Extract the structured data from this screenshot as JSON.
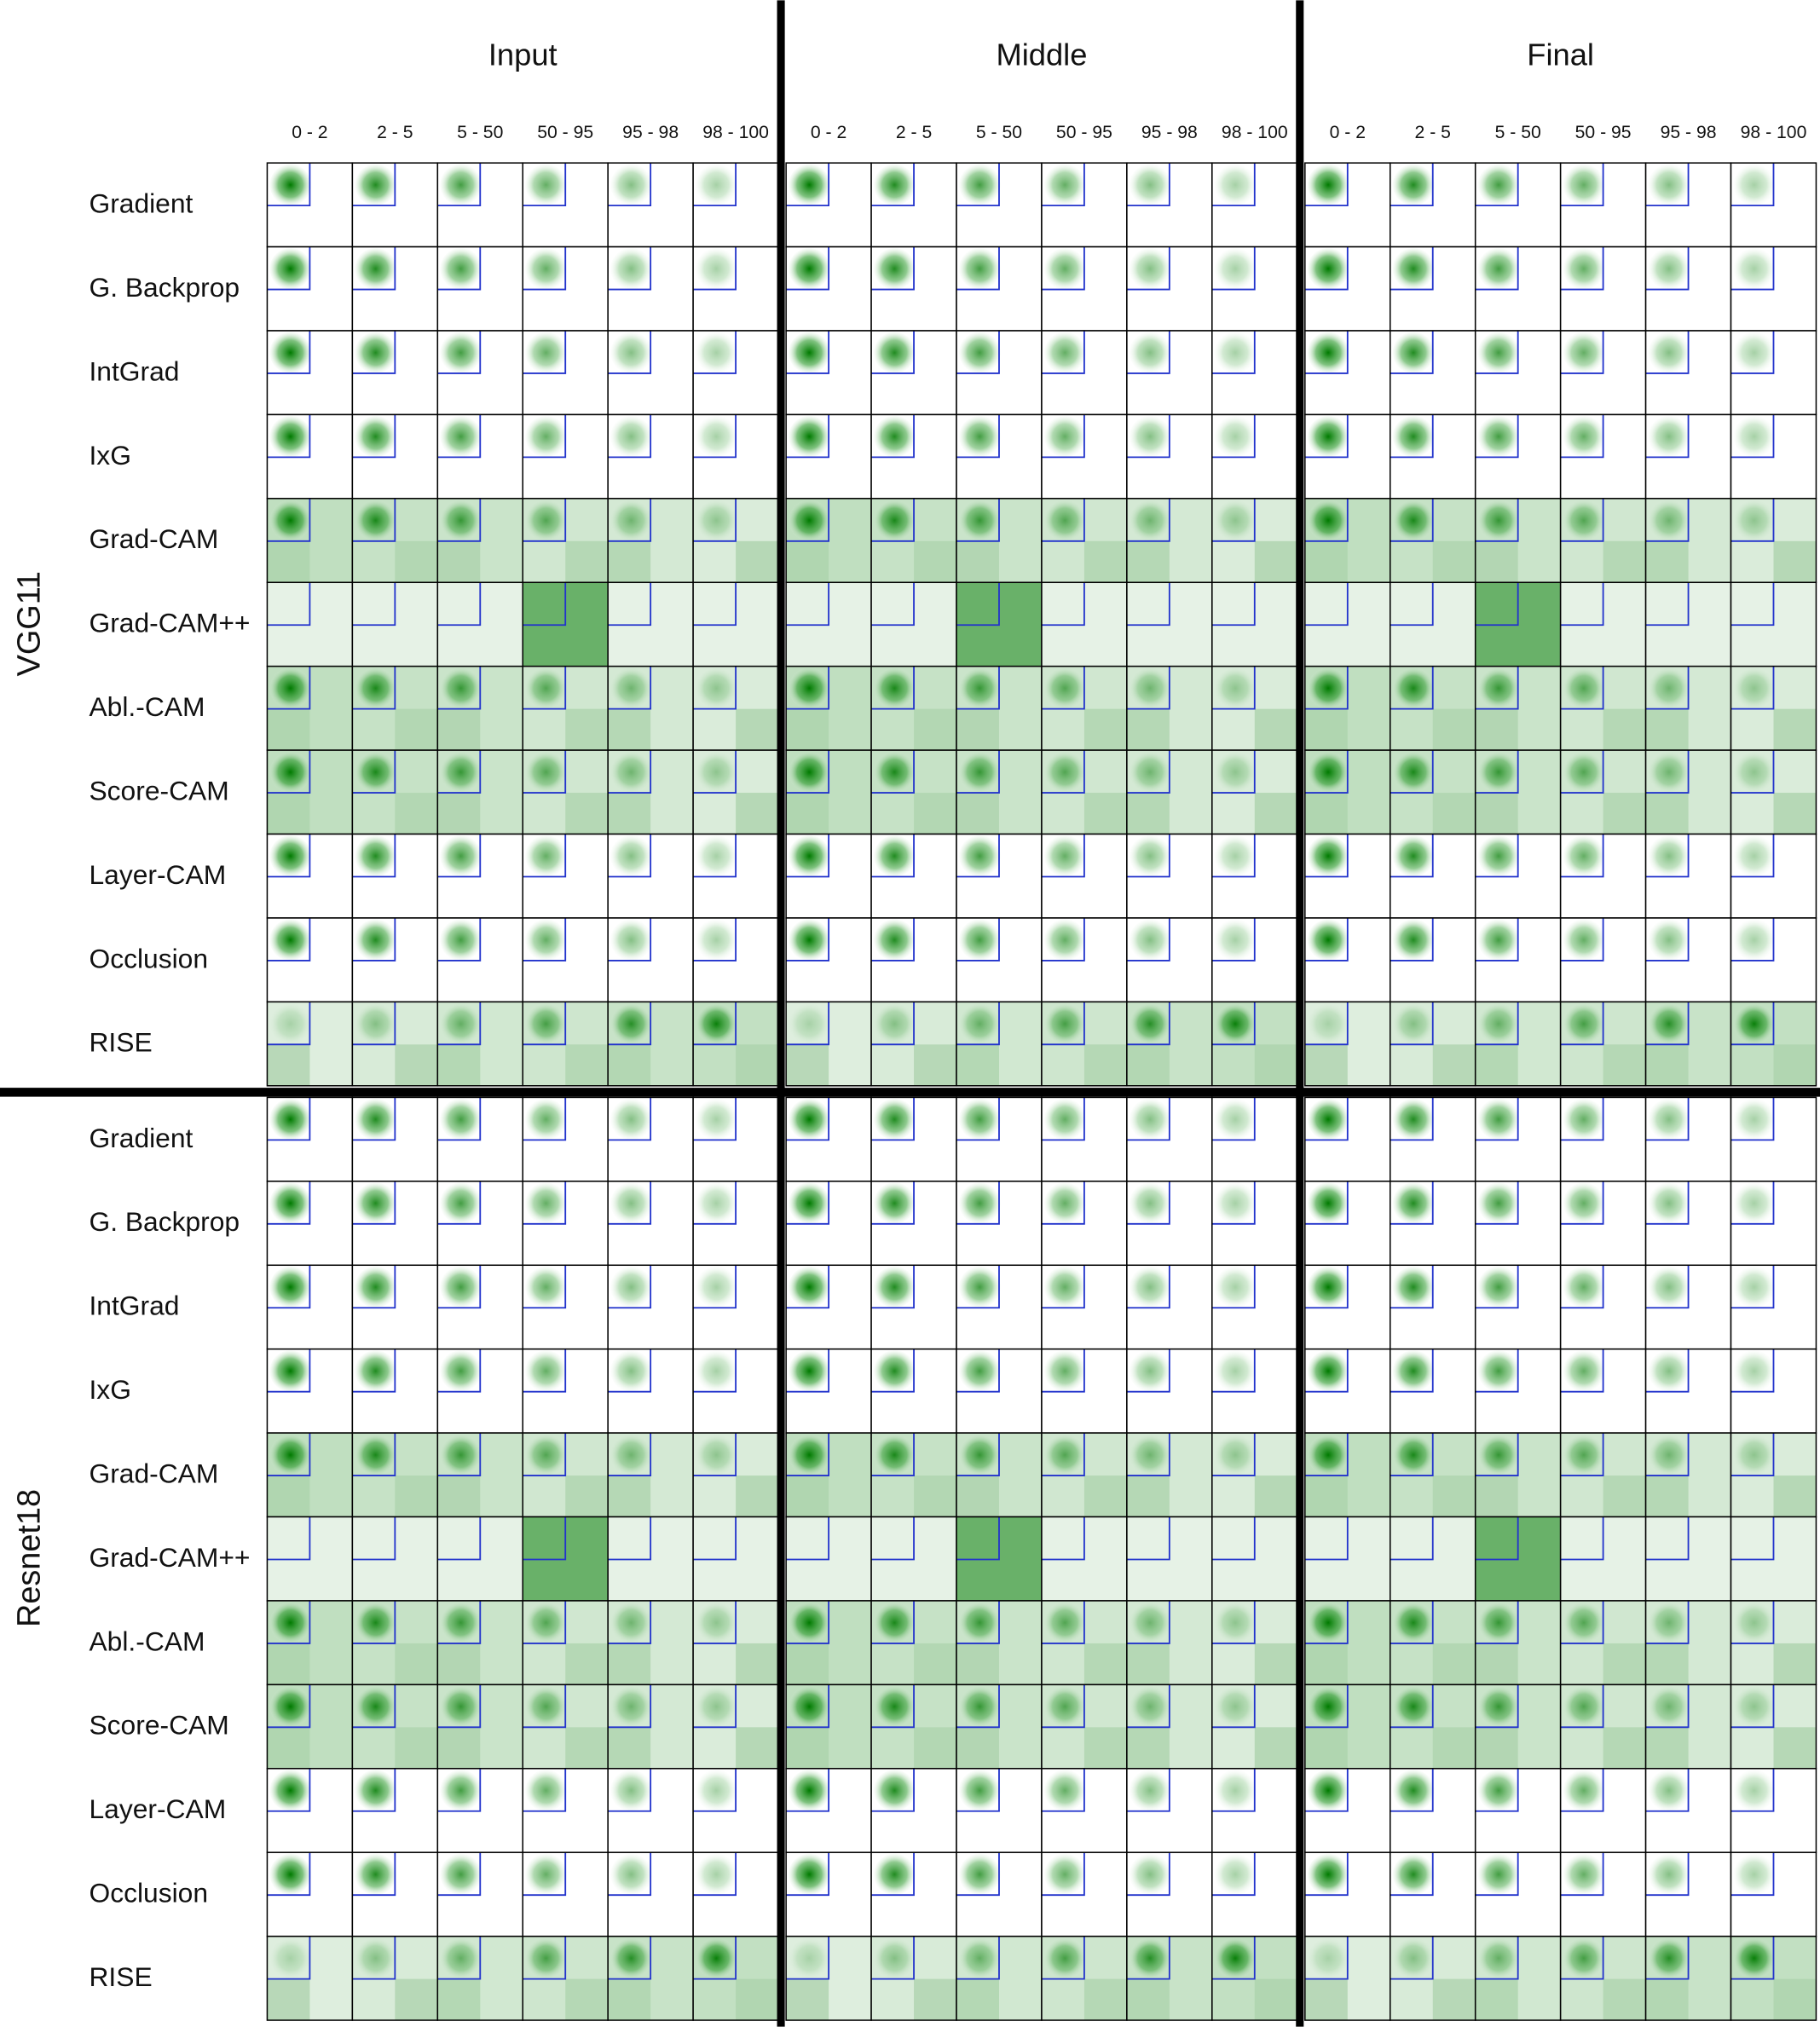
{
  "columns": {
    "groups": [
      "Input",
      "Middle",
      "Final"
    ],
    "bins": [
      "0 - 2",
      "2 - 5",
      "5 - 50",
      "50 - 95",
      "95 - 98",
      "98 - 100"
    ]
  },
  "rows": {
    "models": [
      "VGG11",
      "Resnet18"
    ],
    "methods": [
      "Gradient",
      "G. Backprop",
      "IntGrad",
      "IxG",
      "Grad-CAM",
      "Grad-CAM++",
      "Abl.-CAM",
      "Score-CAM",
      "Layer-CAM",
      "Occlusion",
      "RISE"
    ]
  }
}
